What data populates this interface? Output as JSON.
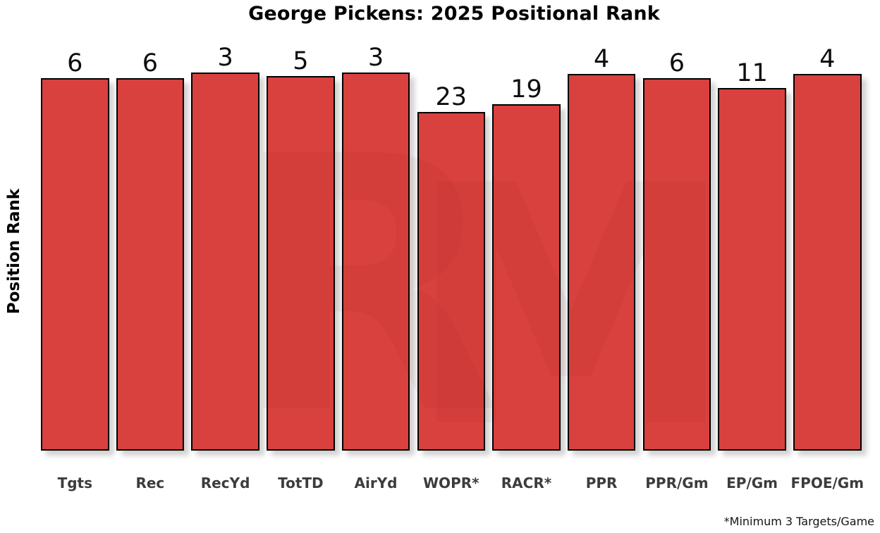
{
  "chart_data": {
    "type": "bar",
    "title": "George Pickens: 2025 Positional Rank",
    "ylabel": "Position Rank",
    "xlabel": "",
    "categories": [
      "Tgts",
      "Rec",
      "RecYd",
      "TotTD",
      "AirYd",
      "WOPR*",
      "RACR*",
      "PPR",
      "PPR/Gm",
      "EP/Gm",
      "FPOE/Gm"
    ],
    "values": [
      6,
      6,
      3,
      5,
      3,
      23,
      19,
      4,
      6,
      11,
      4
    ],
    "footnote": "*Minimum 3 Targets/Game",
    "bar_color": "#d8413e",
    "bar_edge_color": "#000000",
    "value_label_color": "#0d0d0d",
    "tick_label_color": "#3c3c3c",
    "background": "#ffffff",
    "grid": false,
    "legend_position": "none",
    "orientation": "vertical",
    "axis_note": "y-axis represents positional rank inverted: lower (better) rank drawn as taller bar"
  },
  "watermark": {
    "text": "RM",
    "color": "#d8413e"
  }
}
